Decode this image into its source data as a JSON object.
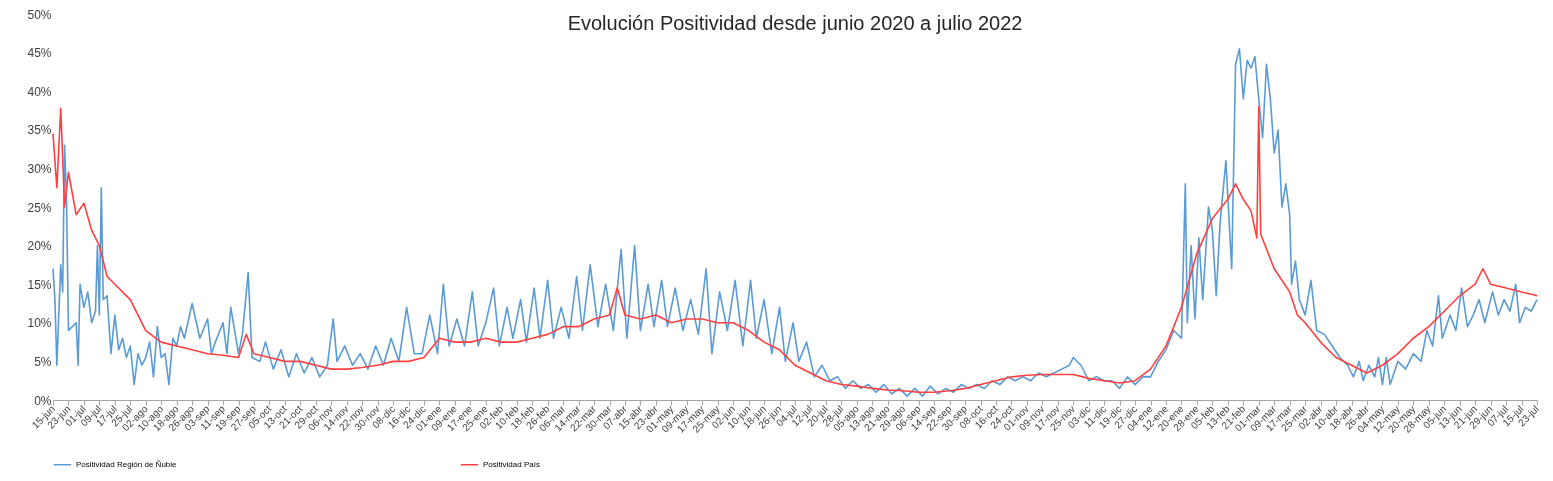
{
  "chart_data": {
    "type": "line",
    "title": "Evolución Positividad desde junio 2020 a julio 2022",
    "legend": "bottom",
    "xlim": [
      "2020-06-15",
      "2022-07-23"
    ],
    "xticks": [
      {
        "value": "2020-06-15",
        "label": "15-jun"
      },
      {
        "value": "2020-06-23",
        "label": "23-jun"
      },
      {
        "value": "2020-07-01",
        "label": "01-jul"
      },
      {
        "value": "2020-07-09",
        "label": "09-jul"
      },
      {
        "value": "2020-07-17",
        "label": "17-jul"
      },
      {
        "value": "2020-07-25",
        "label": "25-jul"
      },
      {
        "value": "2020-08-02",
        "label": "02-ago"
      },
      {
        "value": "2020-08-10",
        "label": "10-ago"
      },
      {
        "value": "2020-08-18",
        "label": "18-ago"
      },
      {
        "value": "2020-08-26",
        "label": "26-ago"
      },
      {
        "value": "2020-09-03",
        "label": "03-sep"
      },
      {
        "value": "2020-09-11",
        "label": "11-sep"
      },
      {
        "value": "2020-09-19",
        "label": "19-sep"
      },
      {
        "value": "2020-09-27",
        "label": "27-sep"
      },
      {
        "value": "2020-10-05",
        "label": "05-oct"
      },
      {
        "value": "2020-10-13",
        "label": "13-oct"
      },
      {
        "value": "2020-10-21",
        "label": "21-oct"
      },
      {
        "value": "2020-10-29",
        "label": "29-oct"
      },
      {
        "value": "2020-11-06",
        "label": "06-nov"
      },
      {
        "value": "2020-11-14",
        "label": "14-nov"
      },
      {
        "value": "2020-11-22",
        "label": "22-nov"
      },
      {
        "value": "2020-11-30",
        "label": "30-nov"
      },
      {
        "value": "2020-12-08",
        "label": "08-dic"
      },
      {
        "value": "2020-12-16",
        "label": "16-dic"
      },
      {
        "value": "2020-12-24",
        "label": "24-dic"
      },
      {
        "value": "2021-01-01",
        "label": "01-ene"
      },
      {
        "value": "2021-01-09",
        "label": "09-ene"
      },
      {
        "value": "2021-01-17",
        "label": "17-ene"
      },
      {
        "value": "2021-01-25",
        "label": "25-ene"
      },
      {
        "value": "2021-02-02",
        "label": "02-feb"
      },
      {
        "value": "2021-02-10",
        "label": "10-feb"
      },
      {
        "value": "2021-02-18",
        "label": "18-feb"
      },
      {
        "value": "2021-02-26",
        "label": "26-feb"
      },
      {
        "value": "2021-03-06",
        "label": "06-mar"
      },
      {
        "value": "2021-03-14",
        "label": "14-mar"
      },
      {
        "value": "2021-03-22",
        "label": "22-mar"
      },
      {
        "value": "2021-03-30",
        "label": "30-mar"
      },
      {
        "value": "2021-04-07",
        "label": "07-abr"
      },
      {
        "value": "2021-04-15",
        "label": "15-abr"
      },
      {
        "value": "2021-04-23",
        "label": "23-abr"
      },
      {
        "value": "2021-05-01",
        "label": "01-may"
      },
      {
        "value": "2021-05-09",
        "label": "09-may"
      },
      {
        "value": "2021-05-17",
        "label": "17-may"
      },
      {
        "value": "2021-05-25",
        "label": "25-may"
      },
      {
        "value": "2021-06-02",
        "label": "02-jun"
      },
      {
        "value": "2021-06-10",
        "label": "10-jun"
      },
      {
        "value": "2021-06-18",
        "label": "18-jun"
      },
      {
        "value": "2021-06-26",
        "label": "26-jun"
      },
      {
        "value": "2021-07-04",
        "label": "04-jul"
      },
      {
        "value": "2021-07-12",
        "label": "12-jul"
      },
      {
        "value": "2021-07-20",
        "label": "20-jul"
      },
      {
        "value": "2021-07-28",
        "label": "28-jul"
      },
      {
        "value": "2021-08-05",
        "label": "05-ago"
      },
      {
        "value": "2021-08-13",
        "label": "13-ago"
      },
      {
        "value": "2021-08-21",
        "label": "21-ago"
      },
      {
        "value": "2021-08-29",
        "label": "29-ago"
      },
      {
        "value": "2021-09-06",
        "label": "06-sep"
      },
      {
        "value": "2021-09-14",
        "label": "14-sep"
      },
      {
        "value": "2021-09-22",
        "label": "22-sep"
      },
      {
        "value": "2021-09-30",
        "label": "30-sep"
      },
      {
        "value": "2021-10-08",
        "label": "08-oct"
      },
      {
        "value": "2021-10-16",
        "label": "16-oct"
      },
      {
        "value": "2021-10-24",
        "label": "24-oct"
      },
      {
        "value": "2021-11-01",
        "label": "01-nov"
      },
      {
        "value": "2021-11-09",
        "label": "09-nov"
      },
      {
        "value": "2021-11-17",
        "label": "17-nov"
      },
      {
        "value": "2021-11-25",
        "label": "25-nov"
      },
      {
        "value": "2021-12-03",
        "label": "03-dic"
      },
      {
        "value": "2021-12-11",
        "label": "11-dic"
      },
      {
        "value": "2021-12-19",
        "label": "19-dic"
      },
      {
        "value": "2021-12-27",
        "label": "27-dic"
      },
      {
        "value": "2022-01-04",
        "label": "04-ene"
      },
      {
        "value": "2022-01-12",
        "label": "12-ene"
      },
      {
        "value": "2022-01-20",
        "label": "20-ene"
      },
      {
        "value": "2022-01-28",
        "label": "28-ene"
      },
      {
        "value": "2022-02-05",
        "label": "05-feb"
      },
      {
        "value": "2022-02-13",
        "label": "13-feb"
      },
      {
        "value": "2022-02-21",
        "label": "21-feb"
      },
      {
        "value": "2022-03-01",
        "label": "01-mar"
      },
      {
        "value": "2022-03-09",
        "label": "09-mar"
      },
      {
        "value": "2022-03-17",
        "label": "17-mar"
      },
      {
        "value": "2022-03-25",
        "label": "25-mar"
      },
      {
        "value": "2022-04-02",
        "label": "02-abr"
      },
      {
        "value": "2022-04-10",
        "label": "10-abr"
      },
      {
        "value": "2022-04-18",
        "label": "18-abr"
      },
      {
        "value": "2022-04-26",
        "label": "26-abr"
      },
      {
        "value": "2022-05-04",
        "label": "04-may"
      },
      {
        "value": "2022-05-12",
        "label": "12-may"
      },
      {
        "value": "2022-05-20",
        "label": "20-may"
      },
      {
        "value": "2022-05-28",
        "label": "28-may"
      },
      {
        "value": "2022-06-05",
        "label": "05-jun"
      },
      {
        "value": "2022-06-13",
        "label": "13-jun"
      },
      {
        "value": "2022-06-21",
        "label": "21-jun"
      },
      {
        "value": "2022-06-29",
        "label": "29-jun"
      },
      {
        "value": "2022-07-07",
        "label": "07-jul"
      },
      {
        "value": "2022-07-15",
        "label": "15-jul"
      },
      {
        "value": "2022-07-23",
        "label": "23-jul"
      }
    ],
    "ylim": [
      0,
      50
    ],
    "yticks": [
      {
        "value": 0,
        "label": "0%"
      },
      {
        "value": 5,
        "label": "5%"
      },
      {
        "value": 10,
        "label": "10%"
      },
      {
        "value": 15,
        "label": "15%"
      },
      {
        "value": 20,
        "label": "20%"
      },
      {
        "value": 25,
        "label": "25%"
      },
      {
        "value": 30,
        "label": "30%"
      },
      {
        "value": 35,
        "label": "35%"
      },
      {
        "value": 40,
        "label": "40%"
      },
      {
        "value": 45,
        "label": "45%"
      },
      {
        "value": 50,
        "label": "50%"
      }
    ],
    "series": [
      {
        "name": "Positividad Región de Ñuble",
        "color": "#5b9bd5",
        "x": [
          "2020-06-15",
          "2020-06-16",
          "2020-06-17",
          "2020-06-19",
          "2020-06-20",
          "2020-06-21",
          "2020-06-22",
          "2020-06-23",
          "2020-06-25",
          "2020-06-27",
          "2020-06-28",
          "2020-06-29",
          "2020-07-01",
          "2020-07-03",
          "2020-07-05",
          "2020-07-07",
          "2020-07-08",
          "2020-07-09",
          "2020-07-10",
          "2020-07-11",
          "2020-07-13",
          "2020-07-15",
          "2020-07-17",
          "2020-07-19",
          "2020-07-21",
          "2020-07-23",
          "2020-07-25",
          "2020-07-27",
          "2020-07-29",
          "2020-07-31",
          "2020-08-02",
          "2020-08-04",
          "2020-08-06",
          "2020-08-08",
          "2020-08-10",
          "2020-08-12",
          "2020-08-14",
          "2020-08-16",
          "2020-08-18",
          "2020-08-20",
          "2020-08-22",
          "2020-08-26",
          "2020-08-30",
          "2020-09-03",
          "2020-09-05",
          "2020-09-07",
          "2020-09-11",
          "2020-09-13",
          "2020-09-15",
          "2020-09-19",
          "2020-09-21",
          "2020-09-24",
          "2020-09-26",
          "2020-09-30",
          "2020-10-03",
          "2020-10-07",
          "2020-10-11",
          "2020-10-15",
          "2020-10-19",
          "2020-10-23",
          "2020-10-27",
          "2020-10-31",
          "2020-11-04",
          "2020-11-07",
          "2020-11-09",
          "2020-11-13",
          "2020-11-17",
          "2020-11-21",
          "2020-11-25",
          "2020-11-29",
          "2020-12-03",
          "2020-12-07",
          "2020-12-11",
          "2020-12-15",
          "2020-12-19",
          "2020-12-23",
          "2020-12-27",
          "2020-12-31",
          "2021-01-03",
          "2021-01-06",
          "2021-01-10",
          "2021-01-14",
          "2021-01-18",
          "2021-01-21",
          "2021-01-25",
          "2021-01-29",
          "2021-02-01",
          "2021-02-05",
          "2021-02-08",
          "2021-02-12",
          "2021-02-15",
          "2021-02-19",
          "2021-02-22",
          "2021-02-26",
          "2021-03-01",
          "2021-03-05",
          "2021-03-09",
          "2021-03-13",
          "2021-03-16",
          "2021-03-20",
          "2021-03-24",
          "2021-03-28",
          "2021-04-01",
          "2021-04-05",
          "2021-04-08",
          "2021-04-12",
          "2021-04-15",
          "2021-04-19",
          "2021-04-22",
          "2021-04-26",
          "2021-04-29",
          "2021-05-03",
          "2021-05-07",
          "2021-05-11",
          "2021-05-15",
          "2021-05-19",
          "2021-05-22",
          "2021-05-26",
          "2021-05-30",
          "2021-06-03",
          "2021-06-07",
          "2021-06-11",
          "2021-06-14",
          "2021-06-18",
          "2021-06-22",
          "2021-06-26",
          "2021-06-29",
          "2021-07-03",
          "2021-07-06",
          "2021-07-10",
          "2021-07-14",
          "2021-07-18",
          "2021-07-22",
          "2021-07-26",
          "2021-07-30",
          "2021-08-03",
          "2021-08-07",
          "2021-08-11",
          "2021-08-15",
          "2021-08-19",
          "2021-08-23",
          "2021-08-27",
          "2021-08-31",
          "2021-09-04",
          "2021-09-08",
          "2021-09-12",
          "2021-09-16",
          "2021-09-20",
          "2021-09-24",
          "2021-09-28",
          "2021-10-02",
          "2021-10-06",
          "2021-10-10",
          "2021-10-14",
          "2021-10-18",
          "2021-10-22",
          "2021-10-26",
          "2021-10-30",
          "2021-11-03",
          "2021-11-07",
          "2021-11-11",
          "2021-11-15",
          "2021-11-19",
          "2021-11-23",
          "2021-11-25",
          "2021-11-29",
          "2021-12-03",
          "2021-12-07",
          "2021-12-11",
          "2021-12-15",
          "2021-12-19",
          "2021-12-23",
          "2021-12-27",
          "2021-12-31",
          "2022-01-04",
          "2022-01-08",
          "2022-01-12",
          "2022-01-16",
          "2022-01-20",
          "2022-01-22",
          "2022-01-23",
          "2022-01-25",
          "2022-01-27",
          "2022-01-29",
          "2022-01-31",
          "2022-02-03",
          "2022-02-05",
          "2022-02-07",
          "2022-02-09",
          "2022-02-12",
          "2022-02-15",
          "2022-02-17",
          "2022-02-19",
          "2022-02-21",
          "2022-02-23",
          "2022-02-25",
          "2022-02-27",
          "2022-03-01",
          "2022-03-03",
          "2022-03-05",
          "2022-03-07",
          "2022-03-09",
          "2022-03-11",
          "2022-03-13",
          "2022-03-15",
          "2022-03-17",
          "2022-03-18",
          "2022-03-20",
          "2022-03-22",
          "2022-03-25",
          "2022-03-28",
          "2022-03-31",
          "2022-04-04",
          "2022-04-08",
          "2022-04-12",
          "2022-04-16",
          "2022-04-19",
          "2022-04-22",
          "2022-04-24",
          "2022-04-27",
          "2022-04-30",
          "2022-05-02",
          "2022-05-04",
          "2022-05-06",
          "2022-05-08",
          "2022-05-12",
          "2022-05-16",
          "2022-05-20",
          "2022-05-24",
          "2022-05-27",
          "2022-05-30",
          "2022-06-02",
          "2022-06-04",
          "2022-06-08",
          "2022-06-11",
          "2022-06-14",
          "2022-06-17",
          "2022-06-20",
          "2022-06-23",
          "2022-06-26",
          "2022-06-30",
          "2022-07-03",
          "2022-07-06",
          "2022-07-09",
          "2022-07-12",
          "2022-07-14",
          "2022-07-17",
          "2022-07-20",
          "2022-07-23"
        ],
        "values": [
          17,
          13,
          4.5,
          17.5,
          14,
          33,
          26,
          9,
          9.5,
          10,
          4.5,
          15,
          12,
          14,
          10,
          11.5,
          20,
          11,
          27.5,
          13,
          13.5,
          6,
          11,
          6.5,
          8,
          5.5,
          7,
          2,
          6,
          4.5,
          5.5,
          7.5,
          3,
          9.5,
          5.5,
          6,
          2,
          8,
          7,
          9.5,
          8,
          12.5,
          8,
          10.5,
          6,
          7.5,
          10,
          6,
          12,
          6,
          8.5,
          16.5,
          5.5,
          5,
          7.5,
          4,
          6.5,
          3,
          6,
          3.5,
          5.5,
          3,
          4.5,
          10.5,
          5,
          7,
          4.5,
          6,
          4,
          7,
          4.5,
          8,
          5,
          12,
          6,
          6,
          11,
          6,
          15,
          7,
          10.5,
          7,
          14,
          7,
          10,
          14.5,
          7,
          12,
          8,
          13,
          7.5,
          14.5,
          8,
          15.5,
          8,
          12,
          8,
          16,
          9,
          17.5,
          9.5,
          15,
          9,
          19.5,
          8,
          20,
          9,
          15,
          9.5,
          15.5,
          9.5,
          14.5,
          9,
          13,
          8.5,
          17,
          6,
          14,
          9,
          15.5,
          7,
          15.5,
          8,
          13,
          6,
          12,
          5,
          10,
          5,
          7.5,
          3,
          4.5,
          2.5,
          3,
          1.5,
          2.5,
          1.5,
          2,
          1,
          2,
          0.8,
          1.5,
          0.5,
          1.5,
          0.5,
          1.8,
          0.8,
          1.5,
          1,
          2,
          1.5,
          2,
          1.5,
          2.5,
          2,
          3,
          2.5,
          3,
          2.5,
          3.5,
          3,
          3.5,
          4,
          4.5,
          5.5,
          4.5,
          2.5,
          3,
          2.5,
          2.5,
          1.5,
          3,
          2,
          3,
          3,
          5,
          6.5,
          9,
          8,
          28,
          10,
          20,
          10.5,
          21,
          13,
          25,
          22,
          13.5,
          23,
          31,
          17,
          43.5,
          45.5,
          39,
          44,
          43,
          44.5,
          39,
          34,
          43.5,
          39,
          32,
          35,
          25,
          28,
          24,
          15,
          18,
          13,
          11,
          15.5,
          9,
          8.5,
          7,
          5.5,
          4.5,
          3,
          5,
          2.5,
          4.5,
          3,
          5.5,
          2,
          5.5,
          2,
          5,
          4,
          6,
          5,
          9,
          7,
          13.5,
          8,
          11,
          9,
          14.5,
          9.5,
          11,
          13,
          10,
          14,
          11,
          13,
          11.5,
          15,
          10,
          12,
          11.5,
          13
        ]
      },
      {
        "name": "Positividad País",
        "color": "#ff4040",
        "x": [
          "2020-06-15",
          "2020-06-17",
          "2020-06-19",
          "2020-06-21",
          "2020-06-23",
          "2020-06-27",
          "2020-07-01",
          "2020-07-05",
          "2020-07-09",
          "2020-07-13",
          "2020-07-17",
          "2020-07-25",
          "2020-08-02",
          "2020-08-10",
          "2020-08-18",
          "2020-08-26",
          "2020-09-03",
          "2020-09-11",
          "2020-09-19",
          "2020-09-23",
          "2020-09-27",
          "2020-10-05",
          "2020-10-13",
          "2020-10-21",
          "2020-10-29",
          "2020-11-06",
          "2020-11-14",
          "2020-11-22",
          "2020-11-30",
          "2020-12-08",
          "2020-12-16",
          "2020-12-24",
          "2021-01-01",
          "2021-01-09",
          "2021-01-17",
          "2021-01-25",
          "2021-02-02",
          "2021-02-10",
          "2021-02-18",
          "2021-02-26",
          "2021-03-06",
          "2021-03-14",
          "2021-03-22",
          "2021-03-30",
          "2021-04-03",
          "2021-04-07",
          "2021-04-15",
          "2021-04-23",
          "2021-05-01",
          "2021-05-09",
          "2021-05-17",
          "2021-05-25",
          "2021-06-02",
          "2021-06-10",
          "2021-06-18",
          "2021-06-26",
          "2021-07-04",
          "2021-07-12",
          "2021-07-20",
          "2021-07-28",
          "2021-08-05",
          "2021-08-13",
          "2021-08-21",
          "2021-08-29",
          "2021-09-06",
          "2021-09-14",
          "2021-09-22",
          "2021-09-30",
          "2021-10-08",
          "2021-10-16",
          "2021-10-24",
          "2021-11-01",
          "2021-11-09",
          "2021-11-17",
          "2021-11-25",
          "2021-12-03",
          "2021-12-11",
          "2021-12-19",
          "2021-12-27",
          "2022-01-04",
          "2022-01-12",
          "2022-01-20",
          "2022-01-28",
          "2022-02-05",
          "2022-02-13",
          "2022-02-17",
          "2022-02-21",
          "2022-02-25",
          "2022-02-28",
          "2022-03-01",
          "2022-03-02",
          "2022-03-09",
          "2022-03-17",
          "2022-03-21",
          "2022-03-25",
          "2022-04-02",
          "2022-04-10",
          "2022-04-18",
          "2022-04-26",
          "2022-05-04",
          "2022-05-12",
          "2022-05-20",
          "2022-05-28",
          "2022-06-05",
          "2022-06-09",
          "2022-06-13",
          "2022-06-21",
          "2022-06-25",
          "2022-06-29",
          "2022-07-07",
          "2022-07-15",
          "2022-07-23"
        ],
        "values": [
          34.5,
          27.5,
          37.8,
          25,
          29.5,
          24,
          25.5,
          22,
          20,
          16,
          15,
          13,
          9,
          7.5,
          7,
          6.5,
          6,
          5.8,
          5.5,
          8.5,
          6,
          5.5,
          5,
          5,
          4.5,
          4,
          4,
          4.2,
          4.5,
          5,
          5,
          5.5,
          8,
          7.5,
          7.5,
          8,
          7.5,
          7.5,
          8,
          8.5,
          9.5,
          9.5,
          10.5,
          11,
          14.5,
          11,
          10.5,
          11,
          10,
          10.5,
          10.5,
          10,
          10,
          9,
          7.5,
          6.5,
          4.5,
          3.5,
          2.5,
          2,
          1.8,
          1.5,
          1.3,
          1.2,
          1,
          1,
          1.2,
          1.5,
          2,
          2.5,
          3,
          3.2,
          3.3,
          3.3,
          3.3,
          2.8,
          2.5,
          2.2,
          2.5,
          4,
          7,
          12,
          19,
          23.5,
          26,
          28,
          26,
          24.5,
          21,
          38,
          21.5,
          17,
          14,
          11,
          10,
          7.5,
          5.5,
          4.5,
          3.5,
          4.5,
          6,
          8,
          9.5,
          11.5,
          12.5,
          13.5,
          15,
          17,
          15,
          14.5,
          14,
          13.5
        ]
      }
    ]
  }
}
